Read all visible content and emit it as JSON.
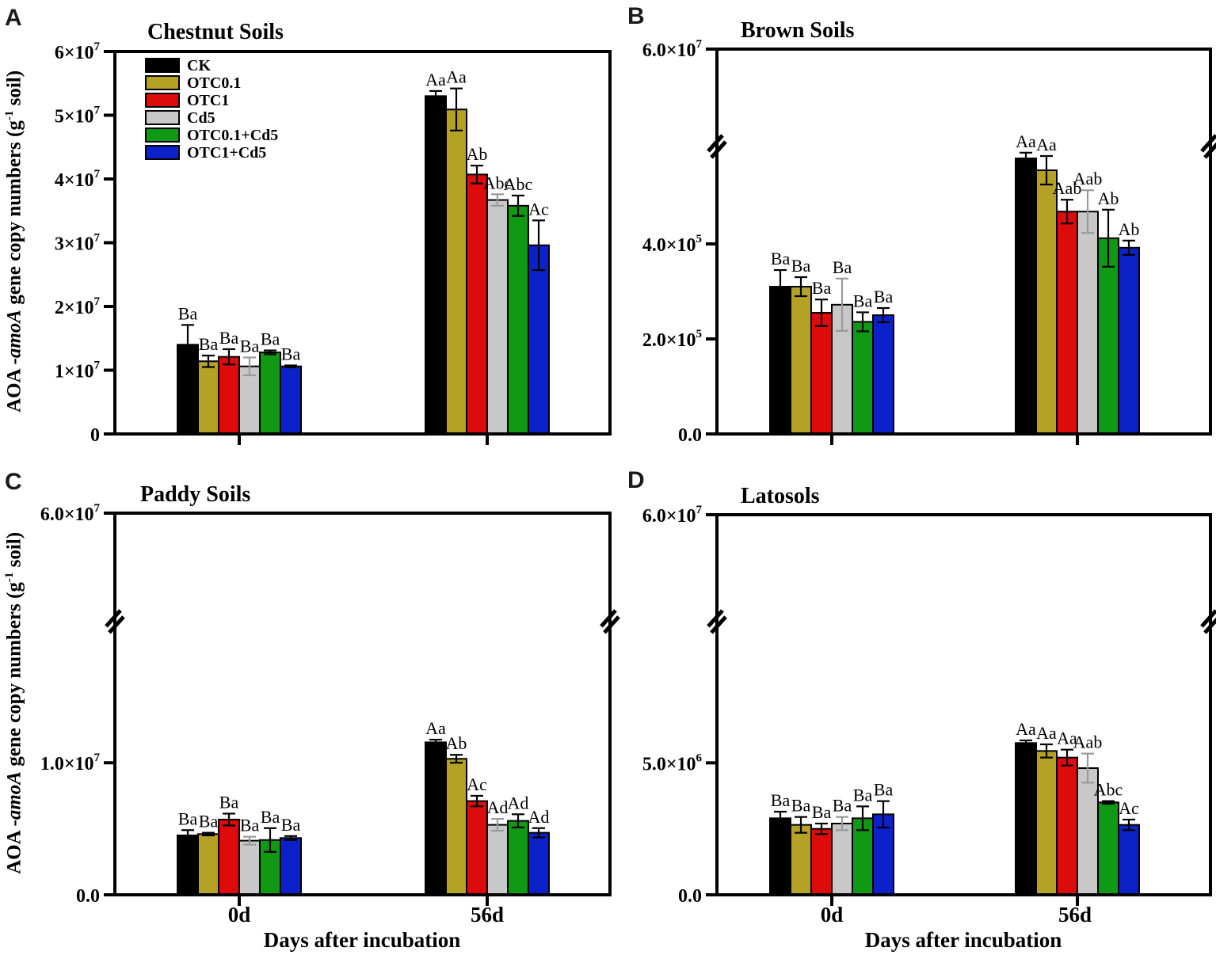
{
  "figure": {
    "y_axis_label": {
      "prefix": "AOA -",
      "italic": "amoA",
      "middle": " gene copy numbers (g",
      "sup": "-1",
      "suffix": " soil)"
    },
    "x_axis_label": "Days after incubation",
    "x_group_labels": [
      "0d",
      "56d"
    ],
    "legend": [
      {
        "label": "CK",
        "color": "#000000"
      },
      {
        "label": "OTC0.1",
        "color": "#b3a226"
      },
      {
        "label": "OTC1",
        "color": "#de0b0b"
      },
      {
        "label": "Cd5",
        "color": "#c8c8c8"
      },
      {
        "label": "OTC0.1+Cd5",
        "color": "#0f9915"
      },
      {
        "label": "OTC1+Cd5",
        "color": "#0c22c8"
      }
    ],
    "error_bar_gray_series": "Cd5",
    "error_bar_gray_color": "#9a9a9a"
  },
  "chart_data": [
    {
      "type": "bar",
      "panel": "A",
      "title": "Chestnut Soils",
      "ylabel": "AOA -amoA gene copy numbers (g-1 soil)",
      "xlabel": "Days after incubation",
      "categories": [
        "0d",
        "56d"
      ],
      "ylim": [
        0,
        60000000
      ],
      "y_break": null,
      "y_ticks": [
        {
          "value": 0,
          "label": "0"
        },
        {
          "value": 10000000,
          "label": "1×10^7"
        },
        {
          "value": 20000000,
          "label": "2×10^7"
        },
        {
          "value": 30000000,
          "label": "3×10^7"
        },
        {
          "value": 40000000,
          "label": "4×10^7"
        },
        {
          "value": 50000000,
          "label": "5×10^7"
        },
        {
          "value": 60000000,
          "label": "6×10^7"
        }
      ],
      "top_tick": null,
      "series": [
        {
          "name": "CK",
          "color": "#000000",
          "values": [
            14000000,
            53000000
          ],
          "errors": [
            3100000,
            800000
          ],
          "sig_labels": [
            "Ba",
            "Aa"
          ]
        },
        {
          "name": "OTC0.1",
          "color": "#b3a226",
          "values": [
            11400000,
            50900000
          ],
          "errors": [
            900000,
            3300000
          ],
          "sig_labels": [
            "Ba",
            "Aa"
          ]
        },
        {
          "name": "OTC1",
          "color": "#de0b0b",
          "values": [
            12100000,
            40700000
          ],
          "errors": [
            1200000,
            1400000
          ],
          "sig_labels": [
            "Ba",
            "Ab"
          ]
        },
        {
          "name": "Cd5",
          "color": "#c8c8c8",
          "values": [
            10600000,
            36700000
          ],
          "errors": [
            1400000,
            900000
          ],
          "sig_labels": [
            "Ba",
            "Abc"
          ]
        },
        {
          "name": "OTC0.1+Cd5",
          "color": "#0f9915",
          "values": [
            12800000,
            35800000
          ],
          "errors": [
            300000,
            1600000
          ],
          "sig_labels": [
            "Ba",
            "Abc"
          ]
        },
        {
          "name": "OTC1+Cd5",
          "color": "#0c22c8",
          "values": [
            10600000,
            29600000
          ],
          "errors": [
            150000,
            3900000
          ],
          "sig_labels": [
            "Ba",
            "Ac"
          ]
        }
      ]
    },
    {
      "type": "bar",
      "panel": "B",
      "title": "Brown Soils",
      "ylabel": "AOA -amoA gene copy numbers (g-1 soil)",
      "xlabel": "Days after incubation",
      "categories": [
        "0d",
        "56d"
      ],
      "ylim": [
        0,
        60000000
      ],
      "y_break": {
        "lower_max": 580000,
        "gap_frac": [
          0.716,
          0.778
        ],
        "upper_top": 60000000
      },
      "y_ticks": [
        {
          "value": 0,
          "label": "0.0"
        },
        {
          "value": 200000,
          "label": "2.0×10^5"
        },
        {
          "value": 400000,
          "label": "4.0×10^5"
        }
      ],
      "top_tick": {
        "value": 60000000,
        "label": "6.0×10^7"
      },
      "series": [
        {
          "name": "CK",
          "color": "#000000",
          "values": [
            310000,
            580000
          ],
          "errors": [
            35000,
            12000
          ],
          "sig_labels": [
            "Ba",
            "Aa"
          ]
        },
        {
          "name": "OTC0.1",
          "color": "#b3a226",
          "values": [
            310000,
            555000
          ],
          "errors": [
            20000,
            30000
          ],
          "sig_labels": [
            "Ba",
            "Aa"
          ]
        },
        {
          "name": "OTC1",
          "color": "#de0b0b",
          "values": [
            255000,
            468000
          ],
          "errors": [
            28000,
            25000
          ],
          "sig_labels": [
            "Ba",
            "Aab"
          ]
        },
        {
          "name": "Cd5",
          "color": "#c8c8c8",
          "values": [
            272000,
            468000
          ],
          "errors": [
            55000,
            45000
          ],
          "sig_labels": [
            "Ba",
            "Aab"
          ]
        },
        {
          "name": "OTC0.1+Cd5",
          "color": "#0f9915",
          "values": [
            236000,
            412000
          ],
          "errors": [
            20000,
            60000
          ],
          "sig_labels": [
            "Ba",
            "Ab"
          ]
        },
        {
          "name": "OTC1+Cd5",
          "color": "#0c22c8",
          "values": [
            250000,
            392000
          ],
          "errors": [
            15000,
            15000
          ],
          "sig_labels": [
            "Ba",
            "Ab"
          ]
        }
      ]
    },
    {
      "type": "bar",
      "panel": "C",
      "title": "Paddy Soils",
      "ylabel": "AOA -amoA gene copy numbers (g-1 soil)",
      "xlabel": "Days after incubation",
      "categories": [
        "0d",
        "56d"
      ],
      "ylim": [
        0,
        60000000
      ],
      "y_break": {
        "lower_max": 19800000,
        "gap_frac": [
          0.685,
          0.747
        ],
        "upper_top": 60000000
      },
      "y_ticks": [
        {
          "value": 0,
          "label": "0.0"
        },
        {
          "value": 10000000,
          "label": "1.0×10^7"
        }
      ],
      "top_tick": {
        "value": 60000000,
        "label": "6.0×10^7"
      },
      "series": [
        {
          "name": "CK",
          "color": "#000000",
          "values": [
            4500000,
            11550000
          ],
          "errors": [
            400000,
            200000
          ],
          "sig_labels": [
            "Ba",
            "Aa"
          ]
        },
        {
          "name": "OTC0.1",
          "color": "#b3a226",
          "values": [
            4600000,
            10300000
          ],
          "errors": [
            100000,
            300000
          ],
          "sig_labels": [
            "Ba",
            "Ab"
          ]
        },
        {
          "name": "OTC1",
          "color": "#de0b0b",
          "values": [
            5700000,
            7100000
          ],
          "errors": [
            450000,
            400000
          ],
          "sig_labels": [
            "Ba",
            "Ac"
          ]
        },
        {
          "name": "Cd5",
          "color": "#c8c8c8",
          "values": [
            4100000,
            5300000
          ],
          "errors": [
            300000,
            450000
          ],
          "sig_labels": [
            "Ba",
            "Ad"
          ]
        },
        {
          "name": "OTC0.1+Cd5",
          "color": "#0f9915",
          "values": [
            4150000,
            5600000
          ],
          "errors": [
            900000,
            500000
          ],
          "sig_labels": [
            "Ba",
            "Ad"
          ]
        },
        {
          "name": "OTC1+Cd5",
          "color": "#0c22c8",
          "values": [
            4300000,
            4700000
          ],
          "errors": [
            150000,
            350000
          ],
          "sig_labels": [
            "Ba",
            "Ad"
          ]
        }
      ]
    },
    {
      "type": "bar",
      "panel": "D",
      "title": "Latosols",
      "ylabel": "AOA -amoA gene copy numbers (g-1 soil)",
      "xlabel": "Days after incubation",
      "categories": [
        "0d",
        "56d"
      ],
      "ylim": [
        0,
        60000000
      ],
      "y_break": {
        "lower_max": 9900000,
        "gap_frac": [
          0.6875,
          0.75
        ],
        "upper_top": 60000000
      },
      "y_ticks": [
        {
          "value": 0,
          "label": "0.0"
        },
        {
          "value": 5000000,
          "label": "5.0×10^6"
        }
      ],
      "top_tick": {
        "value": 60000000,
        "label": "6.0×10^7"
      },
      "series": [
        {
          "name": "CK",
          "color": "#000000",
          "values": [
            2900000,
            5750000
          ],
          "errors": [
            250000,
            100000
          ],
          "sig_labels": [
            "Ba",
            "Aa"
          ]
        },
        {
          "name": "OTC0.1",
          "color": "#b3a226",
          "values": [
            2650000,
            5450000
          ],
          "errors": [
            300000,
            250000
          ],
          "sig_labels": [
            "Ba",
            "Aa"
          ]
        },
        {
          "name": "OTC1",
          "color": "#de0b0b",
          "values": [
            2500000,
            5200000
          ],
          "errors": [
            200000,
            300000
          ],
          "sig_labels": [
            "Ba",
            "Aa"
          ]
        },
        {
          "name": "Cd5",
          "color": "#c8c8c8",
          "values": [
            2700000,
            4800000
          ],
          "errors": [
            250000,
            550000
          ],
          "sig_labels": [
            "Ba",
            "Aab"
          ]
        },
        {
          "name": "OTC0.1+Cd5",
          "color": "#0f9915",
          "values": [
            2900000,
            3500000
          ],
          "errors": [
            450000,
            50000
          ],
          "sig_labels": [
            "Ba",
            "Abc"
          ]
        },
        {
          "name": "OTC1+Cd5",
          "color": "#0c22c8",
          "values": [
            3050000,
            2650000
          ],
          "errors": [
            500000,
            200000
          ],
          "sig_labels": [
            "Ba",
            "Ac"
          ]
        }
      ]
    }
  ]
}
